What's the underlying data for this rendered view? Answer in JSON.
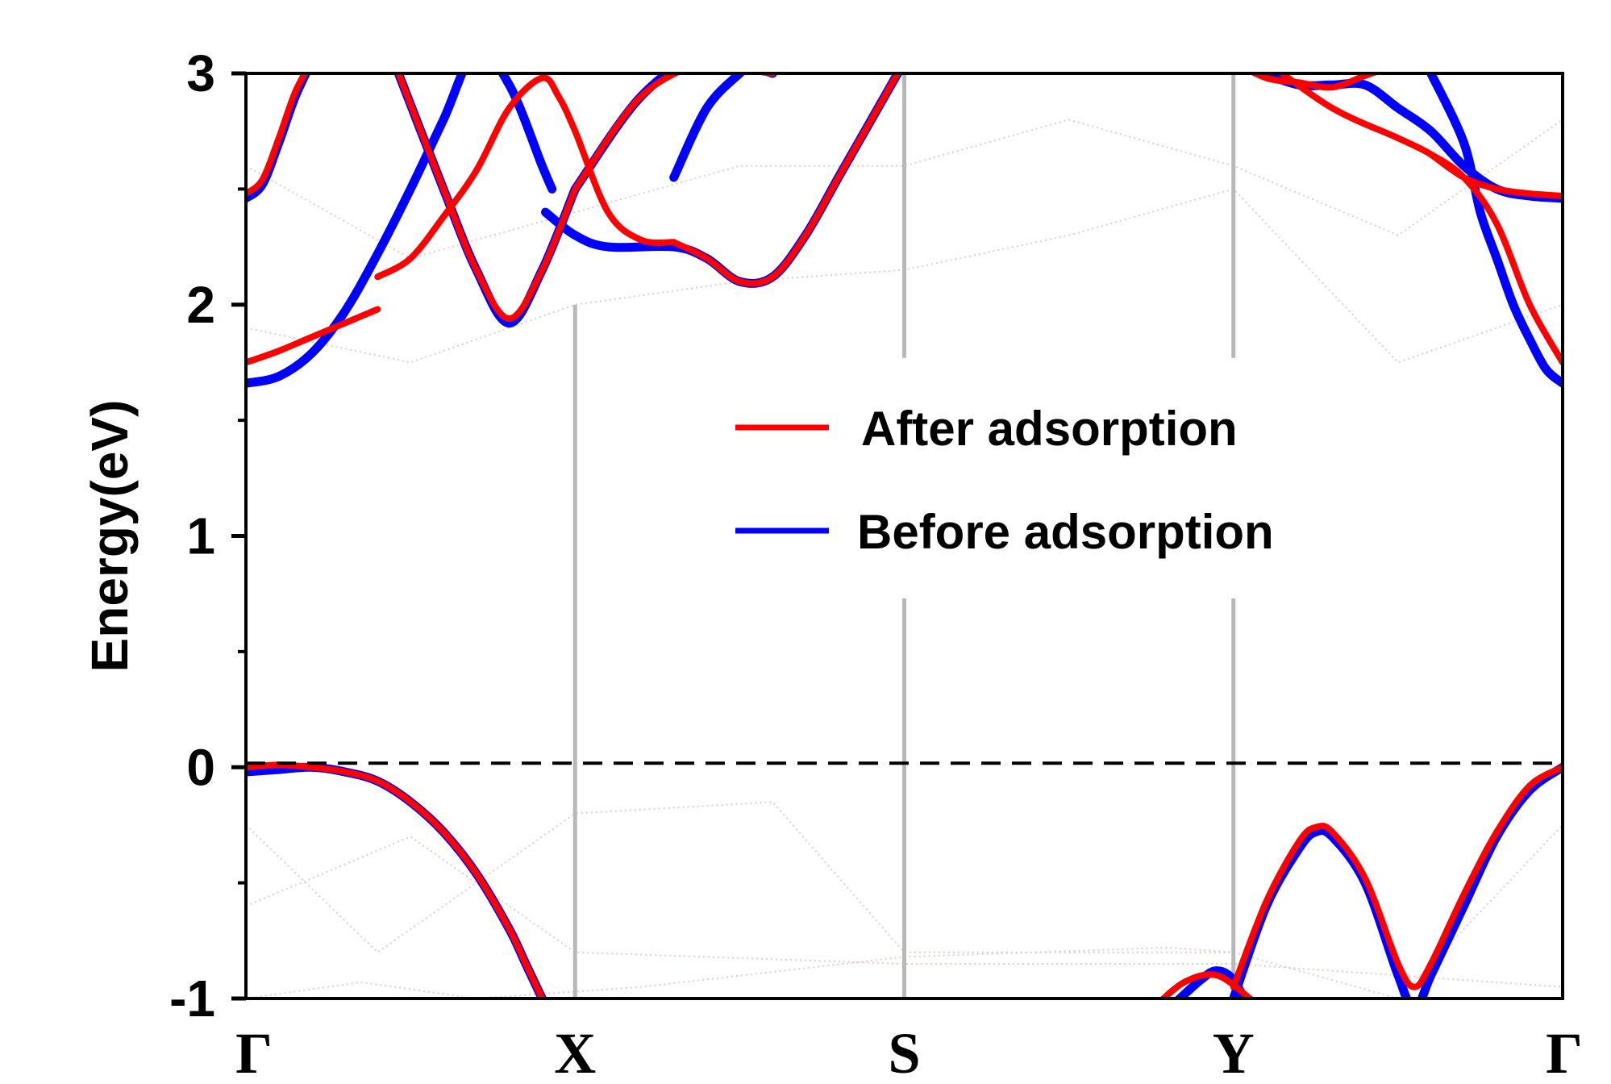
{
  "chart_data": {
    "type": "line",
    "ylabel": "Energy(eV)",
    "ylim": [
      -1,
      3
    ],
    "yticks": [
      {
        "value": -1,
        "label": "-1"
      },
      {
        "value": 0,
        "label": "0"
      },
      {
        "value": 1,
        "label": "1"
      },
      {
        "value": 2,
        "label": "2"
      },
      {
        "value": 3,
        "label": "3"
      }
    ],
    "yminor_ticks": [
      -0.5,
      0.5,
      1.5,
      2.5
    ],
    "xlim": [
      0,
      4
    ],
    "xticks": [
      {
        "value": 0,
        "label": "Γ"
      },
      {
        "value": 1,
        "label": "X"
      },
      {
        "value": 2,
        "label": "S"
      },
      {
        "value": 3,
        "label": "Y"
      },
      {
        "value": 4,
        "label": "Γ"
      }
    ],
    "fermi_level": 0,
    "legend": {
      "position": "center",
      "entries": [
        {
          "label": "After adsorption",
          "color": "#ff0000"
        },
        {
          "label": "Before adsorption",
          "color": "#0000ff"
        }
      ]
    },
    "series": [
      {
        "name": "Before adsorption",
        "color": "#0000ff",
        "bands": [
          {
            "x": [
              0,
              0.1,
              0.2,
              0.3,
              0.4,
              0.5,
              0.6,
              0.7,
              0.8,
              0.9,
              0.93
            ],
            "y": [
              1.66,
              1.69,
              1.79,
              1.97,
              2.22,
              2.5,
              2.8,
              3.1,
              2.95,
              2.6,
              2.5
            ]
          },
          {
            "x": [
              0,
              0.05,
              0.1,
              0.15,
              0.2
            ],
            "y": [
              2.46,
              2.52,
              2.7,
              2.9,
              3.05
            ]
          },
          {
            "x": [
              0.45,
              0.6,
              0.7,
              0.8,
              0.9,
              1.0
            ],
            "y": [
              3.05,
              2.5,
              2.15,
              1.92,
              2.15,
              2.5
            ]
          },
          {
            "x": [
              1.0,
              1.2,
              1.4,
              1.5,
              1.6
            ],
            "y": [
              2.5,
              2.9,
              3.1,
              3.05,
              3.0
            ]
          },
          {
            "x": [
              0.91,
              1.0,
              1.1,
              1.3,
              1.4,
              1.5,
              1.6,
              1.7,
              1.8,
              1.9,
              2.0,
              2.1
            ],
            "y": [
              2.4,
              2.3,
              2.25,
              2.25,
              2.2,
              2.1,
              2.12,
              2.3,
              2.55,
              2.8,
              3.05,
              3.3
            ]
          },
          {
            "x": [
              1.3,
              1.4,
              1.5,
              1.52
            ],
            "y": [
              2.55,
              2.85,
              3.0,
              3.02
            ]
          },
          {
            "x": [
              3.05,
              3.1,
              3.2,
              3.3,
              3.4,
              3.5,
              3.6,
              3.7,
              3.8,
              3.9,
              4.0
            ],
            "y": [
              3.05,
              3.0,
              2.95,
              2.95,
              2.95,
              2.85,
              2.75,
              2.6,
              2.5,
              2.47,
              2.46
            ]
          },
          {
            "x": [
              3.6,
              3.7,
              3.75,
              3.8,
              3.85,
              3.9,
              3.95,
              4.0
            ],
            "y": [
              3.0,
              2.7,
              2.4,
              2.2,
              2.0,
              1.85,
              1.72,
              1.66
            ]
          },
          {
            "x": [
              0,
              0.1,
              0.2,
              0.3,
              0.4,
              0.5,
              0.6,
              0.7,
              0.8,
              0.85,
              0.9,
              0.95
            ],
            "y": [
              -0.02,
              -0.01,
              0.0,
              -0.02,
              -0.06,
              -0.15,
              -0.28,
              -0.46,
              -0.7,
              -0.85,
              -1.0,
              -1.15
            ]
          },
          {
            "x": [
              2.8,
              2.9,
              2.95,
              3.0,
              3.05
            ],
            "y": [
              -1.05,
              -0.92,
              -0.88,
              -0.92,
              -1.05
            ]
          },
          {
            "x": [
              3.0,
              3.1,
              3.2,
              3.25,
              3.3,
              3.4,
              3.5,
              3.55,
              3.6,
              3.7,
              3.8,
              3.9,
              4.0
            ],
            "y": [
              -1.0,
              -0.6,
              -0.35,
              -0.28,
              -0.3,
              -0.5,
              -0.9,
              -1.05,
              -0.9,
              -0.6,
              -0.3,
              -0.1,
              0.0
            ]
          }
        ]
      },
      {
        "name": "After adsorption",
        "color": "#ff0000",
        "bands": [
          {
            "x": [
              0,
              0.1,
              0.2,
              0.3,
              0.4
            ],
            "y": [
              1.75,
              1.8,
              1.86,
              1.92,
              1.98
            ]
          },
          {
            "x": [
              0.4,
              0.5,
              0.6,
              0.7,
              0.8,
              0.9,
              0.95,
              1.0,
              1.1,
              1.2,
              1.3
            ],
            "y": [
              2.12,
              2.2,
              2.38,
              2.58,
              2.85,
              2.98,
              2.9,
              2.75,
              2.4,
              2.28,
              2.27
            ]
          },
          {
            "x": [
              0,
              0.05,
              0.1,
              0.15,
              0.2
            ],
            "y": [
              2.48,
              2.54,
              2.72,
              2.92,
              3.05
            ]
          },
          {
            "x": [
              0.45,
              0.6,
              0.7,
              0.8,
              0.9,
              1.0
            ],
            "y": [
              3.05,
              2.5,
              2.15,
              1.94,
              2.15,
              2.5
            ]
          },
          {
            "x": [
              1.0,
              1.2,
              1.4,
              1.5,
              1.6
            ],
            "y": [
              2.5,
              2.9,
              3.05,
              3.02,
              3.0
            ]
          },
          {
            "x": [
              1.3,
              1.4,
              1.5,
              1.6,
              1.7,
              1.8,
              1.9,
              2.0,
              2.1
            ],
            "y": [
              2.27,
              2.2,
              2.1,
              2.12,
              2.3,
              2.55,
              2.8,
              3.05,
              3.3
            ]
          },
          {
            "x": [
              3.0,
              3.1,
              3.2,
              3.3,
              3.4,
              3.5
            ],
            "y": [
              3.05,
              2.98,
              2.96,
              2.94,
              2.99,
              3.04
            ]
          },
          {
            "x": [
              3.1,
              3.3,
              3.5,
              3.6,
              3.7,
              3.8,
              3.9,
              4.0
            ],
            "y": [
              3.05,
              2.85,
              2.72,
              2.65,
              2.55,
              2.35,
              2.0,
              1.75
            ]
          },
          {
            "x": [
              3.6,
              3.7,
              3.8,
              3.9,
              4.0
            ],
            "y": [
              2.65,
              2.55,
              2.5,
              2.48,
              2.47
            ]
          },
          {
            "x": [
              0,
              0.1,
              0.2,
              0.3,
              0.4,
              0.5,
              0.6,
              0.7,
              0.8,
              0.85,
              0.9
            ],
            "y": [
              0.0,
              0.01,
              0.0,
              -0.02,
              -0.06,
              -0.15,
              -0.28,
              -0.46,
              -0.7,
              -0.85,
              -1.0
            ]
          },
          {
            "x": [
              2.75,
              2.85,
              2.95,
              3.05
            ],
            "y": [
              -1.05,
              -0.93,
              -0.9,
              -1.0
            ]
          },
          {
            "x": [
              3.0,
              3.1,
              3.2,
              3.25,
              3.3,
              3.4,
              3.5,
              3.55,
              3.6,
              3.7,
              3.8,
              3.9,
              4.0
            ],
            "y": [
              -0.95,
              -0.58,
              -0.32,
              -0.26,
              -0.28,
              -0.48,
              -0.85,
              -0.95,
              -0.85,
              -0.55,
              -0.28,
              -0.08,
              0.0
            ]
          }
        ]
      }
    ]
  }
}
